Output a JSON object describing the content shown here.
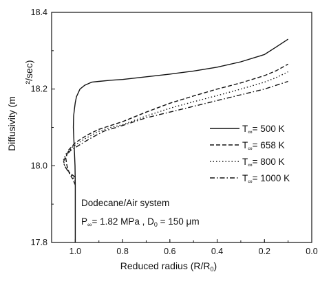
{
  "chart_data": {
    "type": "line",
    "xlabel_main": "Reduced radius (R/R",
    "xlabel_sub": "0",
    "xlabel_end": ")",
    "ylabel": "Diffusivity (m",
    "ylabel_units": "²/sec)",
    "xlim": [
      1.1,
      0.0
    ],
    "ylim": [
      17.8,
      18.4
    ],
    "x_ticks": [
      1.0,
      0.8,
      0.6,
      0.4,
      0.2,
      0.0
    ],
    "x_tick_labels": [
      "1.0",
      "0.8",
      "0.6",
      "0.4",
      "0.2",
      "0.0"
    ],
    "y_ticks": [
      17.8,
      18.0,
      18.2,
      18.4
    ],
    "y_tick_labels": [
      "17.8",
      "18.0",
      "18.2",
      "18.4"
    ],
    "grid": false,
    "legend_position": "right",
    "series": [
      {
        "name": "T∞= 500 K",
        "legend_main": "T",
        "legend_sub": "∞",
        "legend_rest": "= 500 K",
        "dash": "solid",
        "x": [
          1.0,
          1.0,
          1.0,
          1.001,
          1.003,
          1.006,
          1.008,
          1.007,
          1.003,
          1.0,
          0.995,
          0.98,
          0.96,
          0.93,
          0.9,
          0.85,
          0.8,
          0.7,
          0.6,
          0.5,
          0.4,
          0.3,
          0.2,
          0.15,
          0.1
        ],
        "y": [
          17.8,
          17.9,
          17.95,
          18.0,
          18.03,
          18.07,
          18.1,
          18.13,
          18.15,
          18.165,
          18.18,
          18.2,
          18.21,
          18.218,
          18.22,
          18.223,
          18.225,
          18.232,
          18.239,
          18.247,
          18.257,
          18.271,
          18.29,
          18.31,
          18.33
        ]
      },
      {
        "name": "T∞= 658 K",
        "legend_main": "T",
        "legend_sub": "∞",
        "legend_rest": "= 658 K",
        "dash": "dashed",
        "x": [
          1.0,
          1.01,
          1.025,
          1.035,
          1.04,
          1.03,
          1.0,
          0.95,
          0.9,
          0.85,
          0.8,
          0.7,
          0.6,
          0.5,
          0.4,
          0.3,
          0.2,
          0.15,
          0.1
        ],
        "y": [
          17.95,
          17.965,
          17.98,
          18.0,
          18.02,
          18.04,
          18.06,
          18.08,
          18.095,
          18.105,
          18.115,
          18.14,
          18.163,
          18.182,
          18.2,
          18.216,
          18.235,
          18.248,
          18.265
        ]
      },
      {
        "name": "T∞= 800 K",
        "legend_main": "T",
        "legend_sub": "∞",
        "legend_rest": "= 800 K",
        "dash": "dotted",
        "x": [
          1.0,
          1.01,
          1.03,
          1.045,
          1.05,
          1.04,
          1.01,
          0.96,
          0.9,
          0.85,
          0.8,
          0.7,
          0.6,
          0.5,
          0.4,
          0.3,
          0.2,
          0.15,
          0.1
        ],
        "y": [
          17.96,
          17.97,
          17.985,
          18.0,
          18.015,
          18.03,
          18.05,
          18.07,
          18.09,
          18.1,
          18.107,
          18.13,
          18.15,
          18.167,
          18.183,
          18.2,
          18.218,
          18.23,
          18.245
        ]
      },
      {
        "name": "T∞= 1000 K",
        "legend_main": "T",
        "legend_sub": "∞",
        "legend_rest": "= 1000 K",
        "dash": "dashdot",
        "x": [
          1.0,
          1.01,
          1.02,
          1.035,
          1.045,
          1.05,
          1.04,
          1.02,
          0.98,
          0.94,
          0.88,
          0.8,
          0.7,
          0.6,
          0.5,
          0.4,
          0.3,
          0.2,
          0.15,
          0.1
        ],
        "y": [
          17.97,
          17.975,
          17.98,
          17.99,
          18.0,
          18.01,
          18.025,
          18.04,
          18.055,
          18.07,
          18.09,
          18.105,
          18.125,
          18.14,
          18.155,
          18.17,
          18.185,
          18.2,
          18.21,
          18.22
        ]
      }
    ],
    "annotations": {
      "line1": "Dodecane/Air system",
      "line2_p": "P",
      "line2_p_sub": "∞",
      "line2_mid": "= 1.82 MPa , D",
      "line2_d_sub": "0",
      "line2_end": " = 150 μm"
    }
  }
}
